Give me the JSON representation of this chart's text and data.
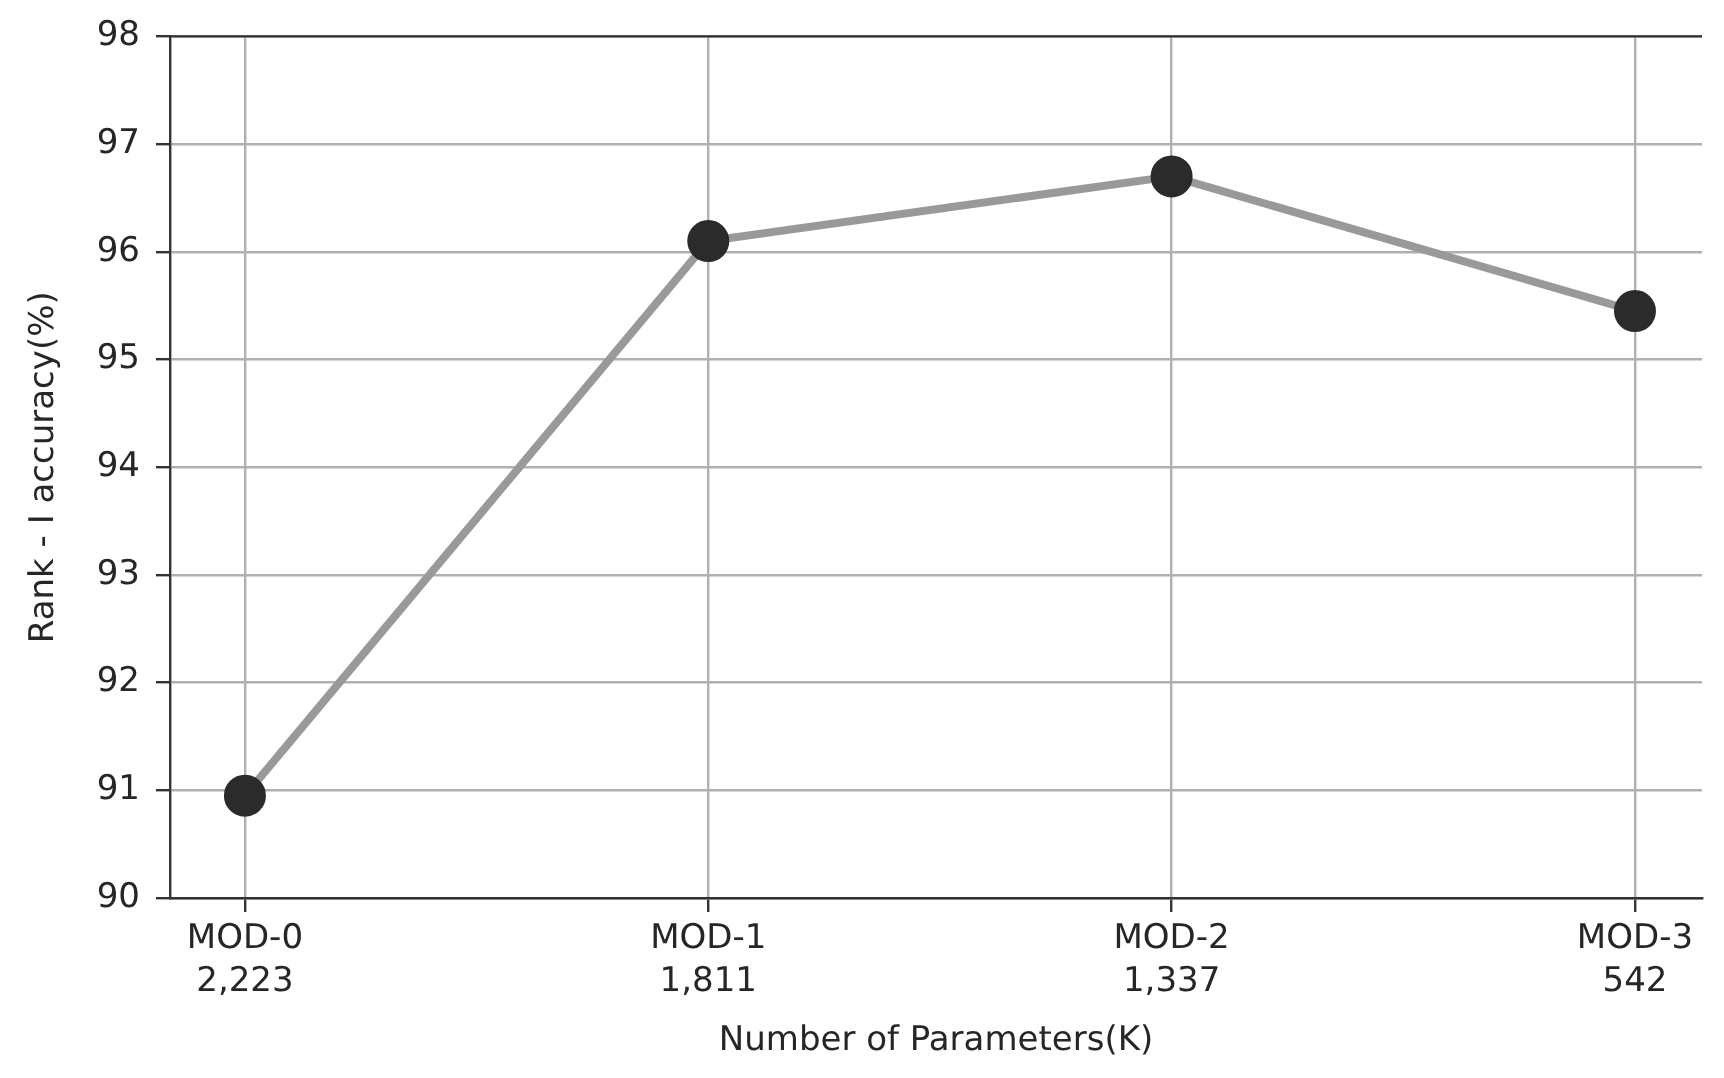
{
  "chart_data": {
    "type": "line",
    "xlabel": "Number of Parameters(K)",
    "ylabel": "Rank - I accuracy(%)",
    "categories": [
      "MOD-0\n2,223",
      "MOD-1\n1,811",
      "MOD-2\n1,337",
      "MOD-3\n542"
    ],
    "series": [
      {
        "color": "#999999",
        "values": [
          90.95,
          96.1,
          96.7,
          95.45
        ]
      }
    ],
    "ylim": [
      90,
      98
    ],
    "yticks": [
      90,
      91,
      92,
      93,
      94,
      95,
      96,
      97,
      98
    ],
    "grid": true,
    "marker": "circle",
    "line_style": "solid"
  }
}
